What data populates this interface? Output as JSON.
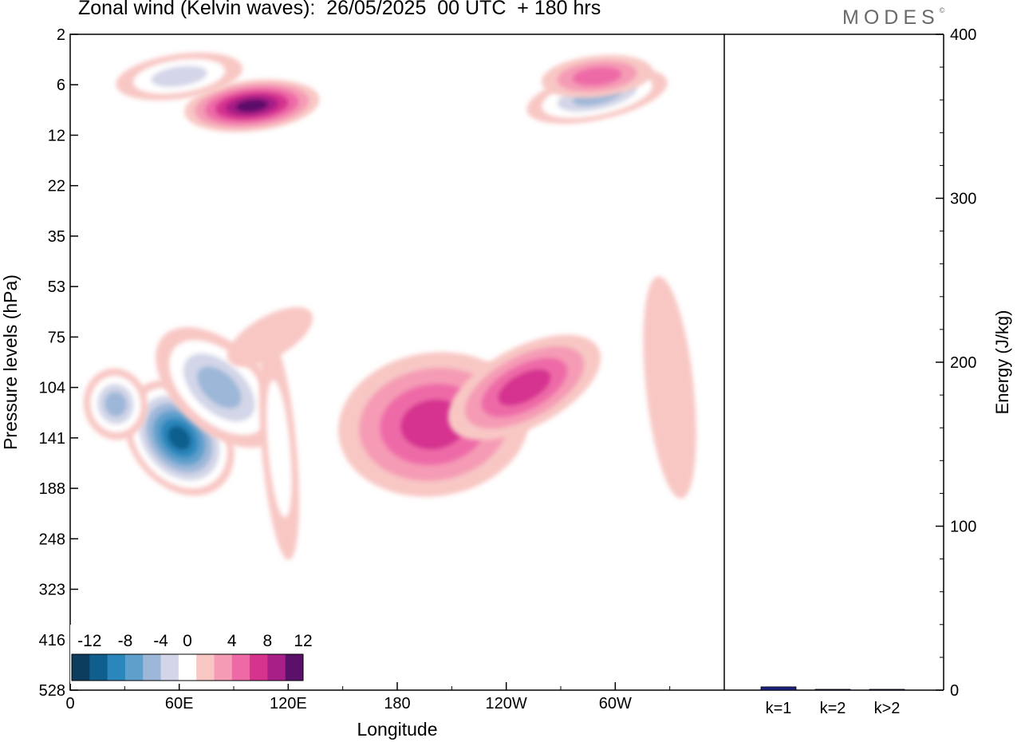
{
  "title": "Zonal wind (Kelvin waves):  26/05/2025  00 UTC  + 180 hrs",
  "logo": "MODES",
  "logo_mark": "©",
  "colors": {
    "negative": [
      "#0c3d5e",
      "#0f5e8e",
      "#2b86bb",
      "#5e9fcc",
      "#9db7d8",
      "#d3d6e8"
    ],
    "neutral": "#ffffff",
    "positive": [
      "#f8c7c4",
      "#f59bb5",
      "#ee6aa7",
      "#d6338f",
      "#a81f87",
      "#5b1169"
    ],
    "bar": "#1a237e"
  },
  "chart_data": [
    {
      "type": "heatmap",
      "title": "Zonal wind (Kelvin waves):  26/05/2025  00 UTC  + 180 hrs",
      "xlabel": "Longitude",
      "ylabel": "Pressure levels (hPa)",
      "x_ticks": [
        "0",
        "60E",
        "120E",
        "180",
        "120W",
        "60W"
      ],
      "x_tick_values": [
        0,
        60,
        120,
        180,
        240,
        300
      ],
      "xlim": [
        0,
        360
      ],
      "y_ticks": [
        "2",
        "6",
        "12",
        "22",
        "35",
        "53",
        "75",
        "104",
        "141",
        "188",
        "248",
        "323",
        "416",
        "528"
      ],
      "y_scale": "log-pressure, reversed",
      "colorbar": {
        "labels": [
          "-12",
          "-8",
          "-4",
          "0",
          "4",
          "8",
          "12"
        ],
        "label_values": [
          -12,
          -8,
          -4,
          0,
          4,
          8,
          12
        ],
        "levels": [
          -14,
          -12,
          -10,
          -8,
          -6,
          -4,
          -2,
          2,
          4,
          6,
          8,
          10,
          12,
          14
        ],
        "placement": "bottom-left"
      },
      "features": [
        {
          "lon": 60,
          "p": 141,
          "value": -14
        },
        {
          "lon": 25,
          "p": 115,
          "value": -8
        },
        {
          "lon": 82,
          "p": 104,
          "value": -8
        },
        {
          "lon": 115,
          "p": 150,
          "value": -4
        },
        {
          "lon": 110,
          "p": 75,
          "value": 2
        },
        {
          "lon": 200,
          "p": 130,
          "value": 8
        },
        {
          "lon": 250,
          "p": 104,
          "value": 8
        },
        {
          "lon": 100,
          "p": 8,
          "value": 12
        },
        {
          "lon": 290,
          "p": 7,
          "value": -8
        },
        {
          "lon": 60,
          "p": 5,
          "value": -6
        },
        {
          "lon": 290,
          "p": 5,
          "value": 6
        },
        {
          "lon": 330,
          "p": 104,
          "value": 2
        }
      ]
    },
    {
      "type": "bar",
      "categories": [
        "k=1",
        "k=2",
        "k>2"
      ],
      "values": [
        2,
        0.5,
        0.5
      ],
      "ylabel": "Energy (J/kg)",
      "ylim": [
        0,
        400
      ],
      "y_ticks": [
        0,
        100,
        200,
        300,
        400
      ],
      "yaxis": "right"
    }
  ]
}
